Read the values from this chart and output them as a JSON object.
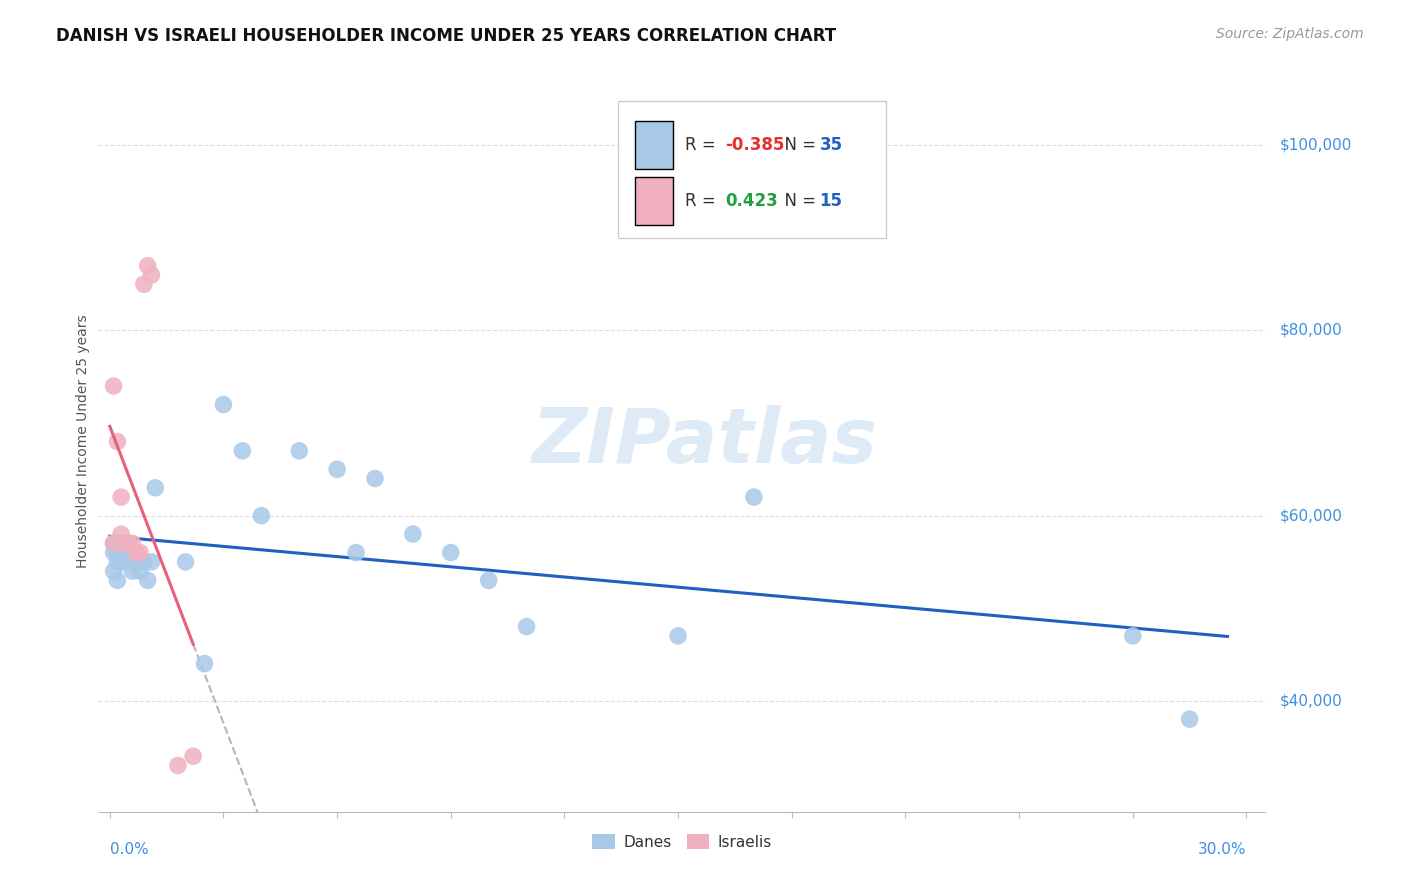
{
  "title": "DANISH VS ISRAELI HOUSEHOLDER INCOME UNDER 25 YEARS CORRELATION CHART",
  "source": "Source: ZipAtlas.com",
  "ylabel": "Householder Income Under 25 years",
  "ytick_labels": [
    "$40,000",
    "$60,000",
    "$80,000",
    "$100,000"
  ],
  "ytick_values": [
    40000,
    60000,
    80000,
    100000
  ],
  "xlim": [
    -0.003,
    0.305
  ],
  "ylim": [
    28000,
    108000
  ],
  "danes_color": "#A8C8E8",
  "israelis_color": "#F0B0C0",
  "danes_R": "-0.385",
  "danes_N": "35",
  "israelis_R": "0.423",
  "israelis_N": "15",
  "trend_line_danes_color": "#2060C0",
  "trend_line_israelis_color": "#E8607A",
  "trend_ext_color": "#C0B0B8",
  "watermark": "ZIPatlas",
  "danes_x": [
    0.001,
    0.001,
    0.001,
    0.002,
    0.002,
    0.002,
    0.003,
    0.003,
    0.004,
    0.005,
    0.005,
    0.006,
    0.007,
    0.008,
    0.009,
    0.01,
    0.011,
    0.012,
    0.02,
    0.025,
    0.03,
    0.035,
    0.04,
    0.05,
    0.06,
    0.065,
    0.07,
    0.08,
    0.09,
    0.1,
    0.11,
    0.15,
    0.17,
    0.27,
    0.285
  ],
  "danes_y": [
    57000,
    56000,
    54000,
    55000,
    56000,
    53000,
    55000,
    56000,
    55000,
    57000,
    56000,
    54000,
    55000,
    54000,
    55000,
    53000,
    55000,
    63000,
    55000,
    44000,
    72000,
    67000,
    60000,
    67000,
    65000,
    56000,
    64000,
    58000,
    56000,
    53000,
    48000,
    47000,
    62000,
    47000,
    38000
  ],
  "israelis_x": [
    0.001,
    0.001,
    0.002,
    0.003,
    0.003,
    0.004,
    0.005,
    0.006,
    0.007,
    0.008,
    0.009,
    0.01,
    0.011,
    0.018,
    0.022
  ],
  "israelis_y": [
    74000,
    57000,
    68000,
    58000,
    62000,
    57000,
    57000,
    57000,
    56000,
    56000,
    85000,
    87000,
    86000,
    33000,
    34000
  ],
  "legend_r_color": "#E53030",
  "legend_n_color": "#2060C0",
  "legend_r2_color": "#20A040",
  "title_fontsize": 12,
  "source_fontsize": 10,
  "axis_label_fontsize": 10,
  "tick_label_fontsize": 11,
  "legend_fontsize": 12
}
